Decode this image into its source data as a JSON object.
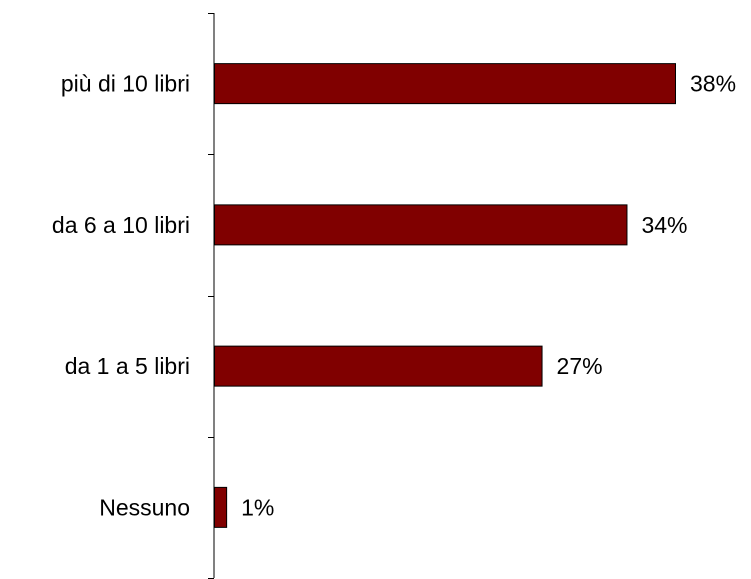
{
  "chart_data": {
    "type": "bar",
    "orientation": "horizontal",
    "categories": [
      "più di 10 libri",
      "da 6 a 10 libri",
      "da 1 a 5 libri",
      "Nessuno"
    ],
    "values": [
      38,
      34,
      27,
      1
    ],
    "value_labels": [
      "38%",
      "34%",
      "27%",
      "1%"
    ],
    "unit": "%",
    "title": "",
    "xlabel": "",
    "ylabel": "",
    "xlim": [
      0,
      38
    ],
    "grid": false,
    "legend": "none",
    "bar_color": "#800000"
  }
}
